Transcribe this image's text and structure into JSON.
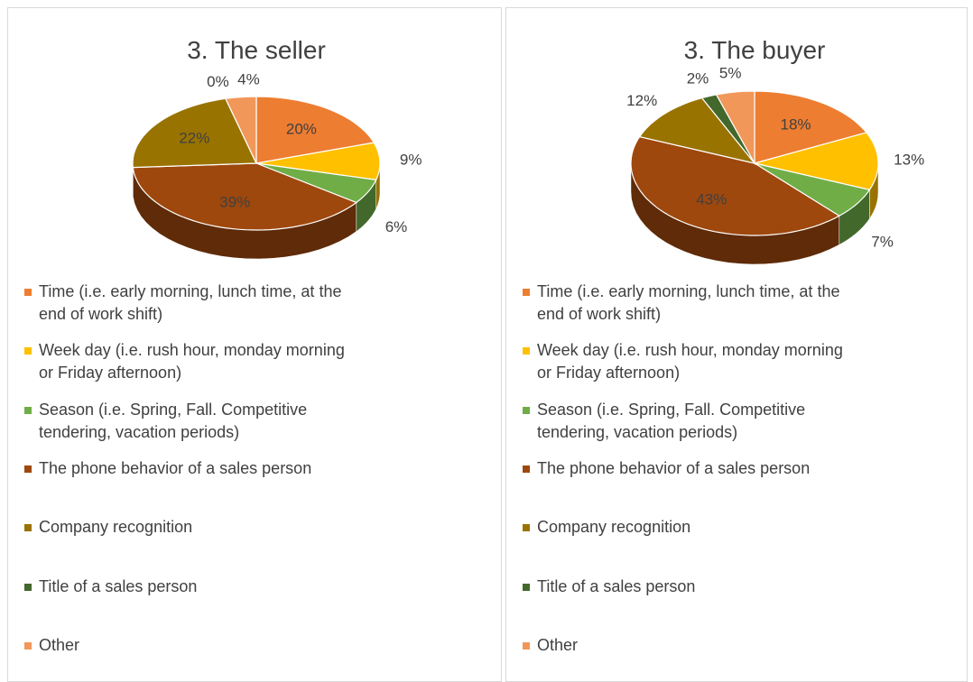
{
  "chart_data": [
    {
      "type": "pie",
      "title": "3. The seller",
      "categories": [
        "Time (i.e. early morning, lunch time, at the end of work shift)",
        "Week day (i.e. rush hour, monday morning or Friday afternoon)",
        "Season (i.e. Spring, Fall. Competitive tendering, vacation periods)",
        "The phone behavior of a sales person",
        "Company recognition",
        "Title of a sales person",
        "Other"
      ],
      "values": [
        20,
        9,
        6,
        39,
        22,
        0,
        4
      ],
      "value_labels": [
        "20%",
        "9%",
        "6%",
        "39%",
        "22%",
        "0%",
        "4%"
      ],
      "colors": [
        "#ed7d31",
        "#ffc000",
        "#70ad47",
        "#9e480e",
        "#997300",
        "#43682b",
        "#f1975a"
      ]
    },
    {
      "type": "pie",
      "title": "3. The buyer",
      "categories": [
        "Time (i.e. early morning, lunch time, at the end of work shift)",
        "Week day (i.e. rush hour, monday morning or Friday afternoon)",
        "Season (i.e. Spring, Fall. Competitive tendering, vacation periods)",
        "The phone behavior of a sales person",
        "Company recognition",
        "Title of a sales person",
        "Other"
      ],
      "values": [
        18,
        13,
        7,
        43,
        12,
        2,
        5
      ],
      "value_labels": [
        "18%",
        "13%",
        "7%",
        "43%",
        "12%",
        "2%",
        "5%"
      ],
      "colors": [
        "#ed7d31",
        "#ffc000",
        "#70ad47",
        "#9e480e",
        "#997300",
        "#43682b",
        "#f1975a"
      ]
    }
  ]
}
